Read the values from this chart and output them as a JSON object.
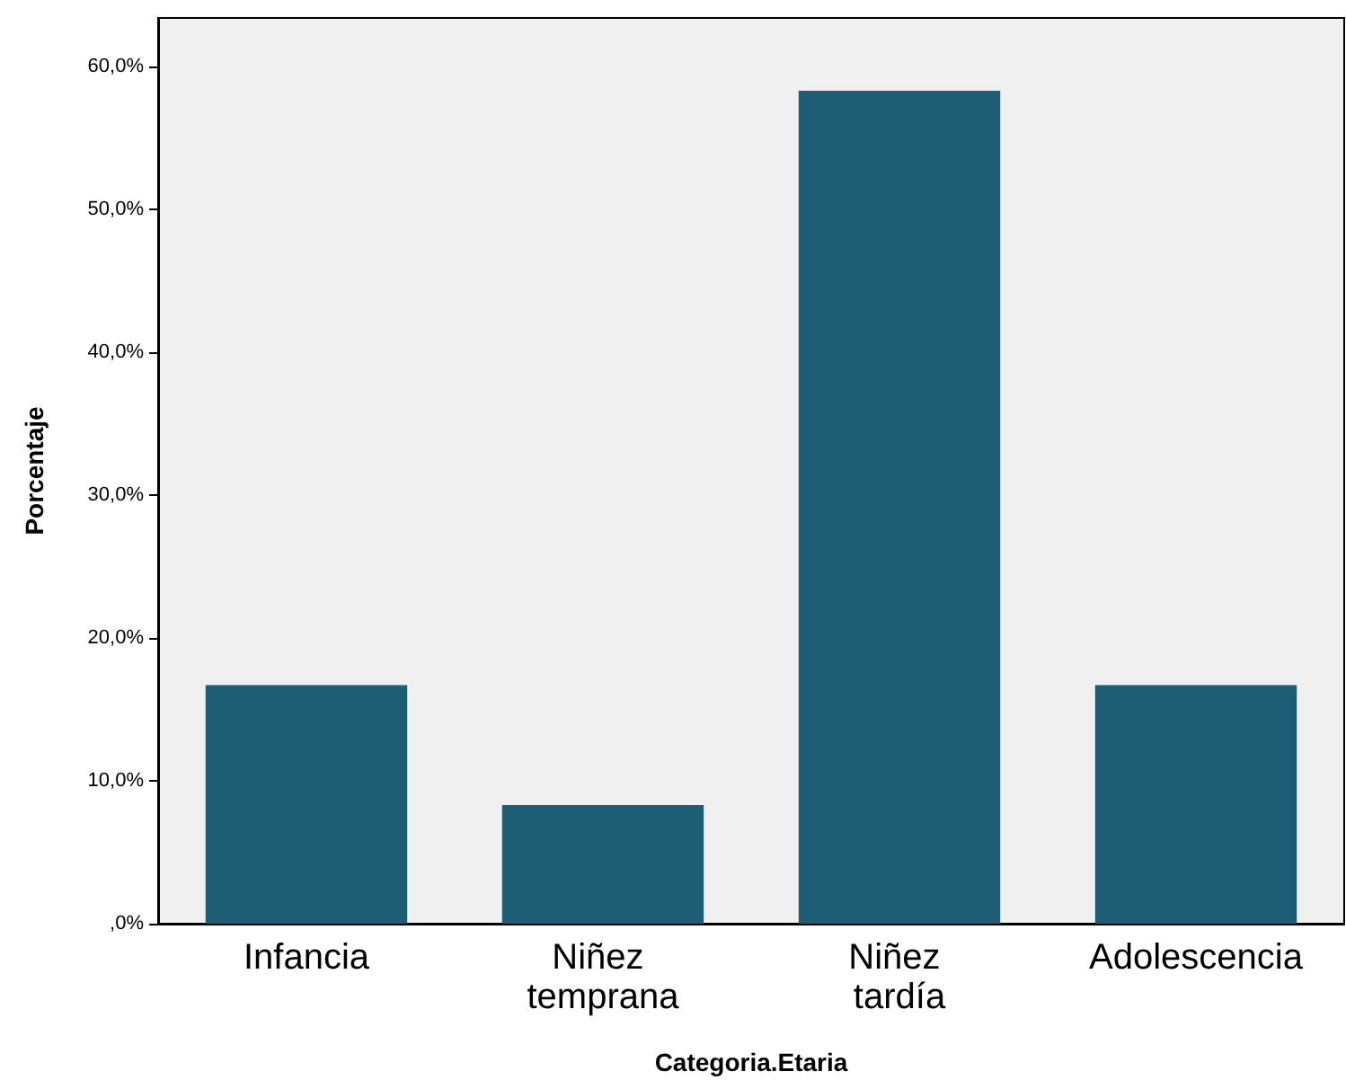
{
  "chart_data": {
    "type": "bar",
    "xlabel": "Categoria.Etaria",
    "ylabel": "Porcentaje",
    "categories": [
      "Infancia",
      "Niñez temprana",
      "Niñez tardía",
      "Adolescencia"
    ],
    "values": [
      16.7,
      8.3,
      58.3,
      16.7
    ],
    "color": "#1d5e74",
    "ylim": [
      0,
      63.4
    ],
    "yticks": [
      {
        "value": 0,
        "label": ",0%"
      },
      {
        "value": 10,
        "label": "10,0%"
      },
      {
        "value": 20,
        "label": "20,0%"
      },
      {
        "value": 30,
        "label": "30,0%"
      },
      {
        "value": 40,
        "label": "40,0%"
      },
      {
        "value": 50,
        "label": "50,0%"
      },
      {
        "value": 60,
        "label": "60,0%"
      }
    ],
    "grid": false
  }
}
